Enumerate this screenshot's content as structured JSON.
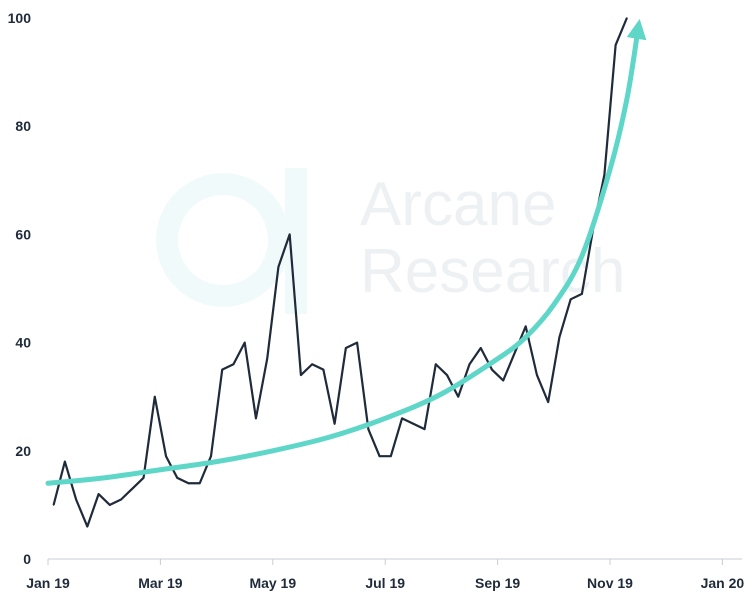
{
  "chart_data": {
    "type": "line",
    "title": "",
    "xlabel": "",
    "ylabel": "",
    "ylim": [
      0,
      100
    ],
    "y_ticks": [
      0,
      20,
      40,
      60,
      80,
      100
    ],
    "x_ticks": [
      "Jan 19",
      "Mar 19",
      "May 19",
      "Jul 19",
      "Sep 19",
      "Nov 19",
      "Jan 20"
    ],
    "grid": false,
    "series": [
      {
        "color": "#1f2a3a",
        "points": [
          [
            0.1,
            10
          ],
          [
            0.3,
            18
          ],
          [
            0.5,
            11
          ],
          [
            0.7,
            6
          ],
          [
            0.9,
            12
          ],
          [
            1.1,
            10
          ],
          [
            1.3,
            11
          ],
          [
            1.5,
            13
          ],
          [
            1.7,
            15
          ],
          [
            1.9,
            30
          ],
          [
            2.1,
            19
          ],
          [
            2.3,
            15
          ],
          [
            2.5,
            14
          ],
          [
            2.7,
            14
          ],
          [
            2.9,
            19
          ],
          [
            3.1,
            35
          ],
          [
            3.3,
            36
          ],
          [
            3.5,
            40
          ],
          [
            3.7,
            26
          ],
          [
            3.9,
            37
          ],
          [
            4.1,
            54
          ],
          [
            4.3,
            60
          ],
          [
            4.5,
            34
          ],
          [
            4.7,
            36
          ],
          [
            4.9,
            35
          ],
          [
            5.1,
            25
          ],
          [
            5.3,
            39
          ],
          [
            5.5,
            40
          ],
          [
            5.7,
            24
          ],
          [
            5.9,
            19
          ],
          [
            6.1,
            19
          ],
          [
            6.3,
            26
          ],
          [
            6.5,
            25
          ],
          [
            6.7,
            24
          ],
          [
            6.9,
            36
          ],
          [
            7.1,
            34
          ],
          [
            7.3,
            30
          ],
          [
            7.5,
            36
          ],
          [
            7.7,
            39
          ],
          [
            7.9,
            35
          ],
          [
            8.1,
            33
          ],
          [
            8.3,
            38
          ],
          [
            8.5,
            43
          ],
          [
            8.7,
            34
          ],
          [
            8.9,
            29
          ],
          [
            9.1,
            41
          ],
          [
            9.3,
            48
          ],
          [
            9.5,
            49
          ],
          [
            9.7,
            61
          ],
          [
            9.9,
            71
          ],
          [
            10.1,
            95
          ],
          [
            10.3,
            100
          ]
        ]
      },
      {
        "color": "#5ed6c8",
        "arrow": true,
        "points": [
          [
            0,
            14
          ],
          [
            1,
            15
          ],
          [
            2,
            16.5
          ],
          [
            3,
            18
          ],
          [
            4,
            20
          ],
          [
            5,
            22.5
          ],
          [
            6,
            26
          ],
          [
            7,
            30.5
          ],
          [
            8,
            37
          ],
          [
            8.5,
            41
          ],
          [
            9,
            47
          ],
          [
            9.5,
            56
          ],
          [
            10,
            72
          ],
          [
            10.3,
            85
          ],
          [
            10.5,
            98
          ]
        ]
      }
    ]
  },
  "watermark": {
    "line1": "Arcane",
    "line2": "Research",
    "color": "#eef1f4",
    "logo_color": "#f1fafa"
  }
}
